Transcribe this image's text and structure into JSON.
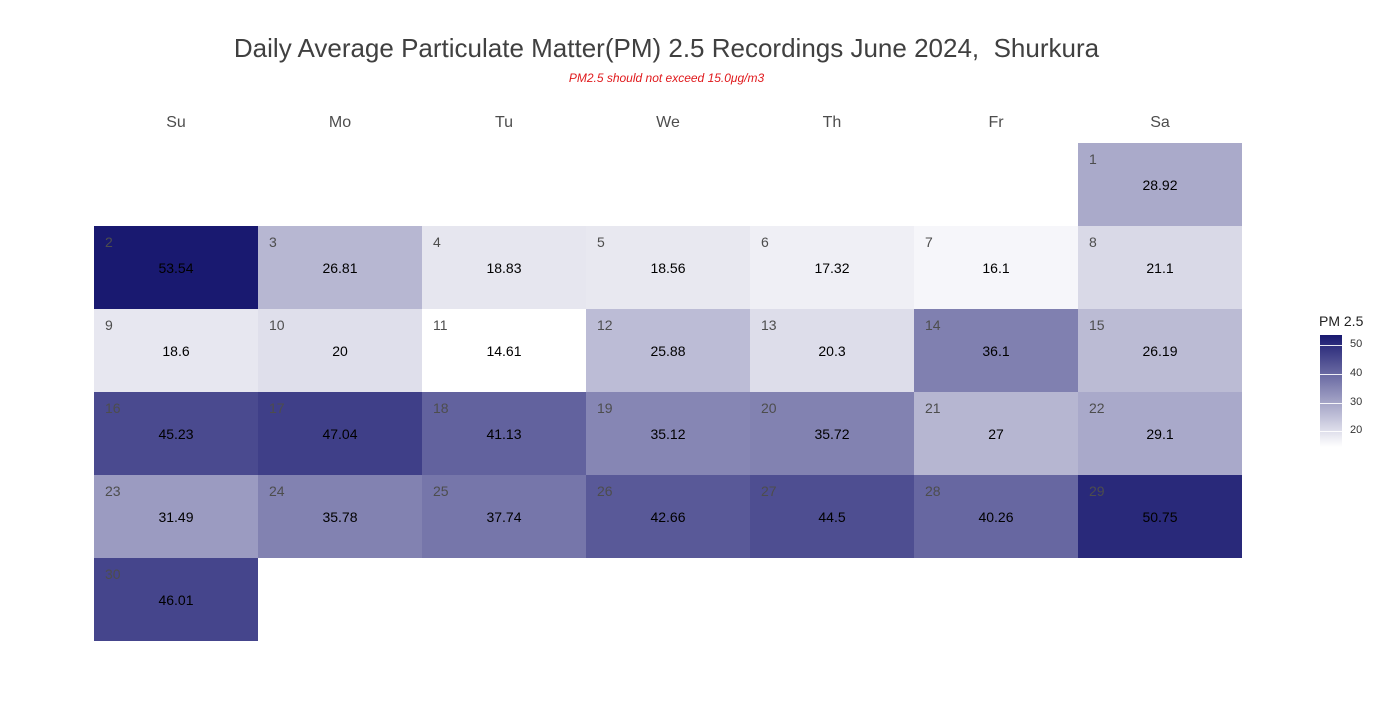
{
  "chart_data": {
    "type": "heatmap",
    "title": "Daily Average Particulate Matter(PM) 2.5 Recordings June 2024,  Shurkura",
    "subtitle": "PM2.5 should not exceed 15.0μg/m3",
    "weekdays": [
      "Su",
      "Mo",
      "Tu",
      "We",
      "Th",
      "Fr",
      "Sa"
    ],
    "first_weekday_index": 6,
    "days": [
      1,
      2,
      3,
      4,
      5,
      6,
      7,
      8,
      9,
      10,
      11,
      12,
      13,
      14,
      15,
      16,
      17,
      18,
      19,
      20,
      21,
      22,
      23,
      24,
      25,
      26,
      27,
      28,
      29,
      30
    ],
    "values": [
      "28.92",
      "53.54",
      "26.81",
      "18.83",
      "18.56",
      "17.32",
      "16.1",
      "21.1",
      "18.6",
      "20",
      "14.61",
      "25.88",
      "20.3",
      "36.1",
      "26.19",
      "45.23",
      "47.04",
      "41.13",
      "35.12",
      "35.72",
      "27",
      "29.1",
      "31.49",
      "35.78",
      "37.74",
      "42.66",
      "44.5",
      "40.26",
      "50.75",
      "46.01"
    ],
    "legend": {
      "title": "PM 2.5",
      "ticks": [
        "50",
        "40",
        "30",
        "20"
      ],
      "tick_values": [
        50,
        40,
        30,
        20
      ]
    },
    "color_range": {
      "min": 14.61,
      "max": 53.54,
      "low_color": "#ffffff",
      "high_color": "#191970"
    }
  }
}
